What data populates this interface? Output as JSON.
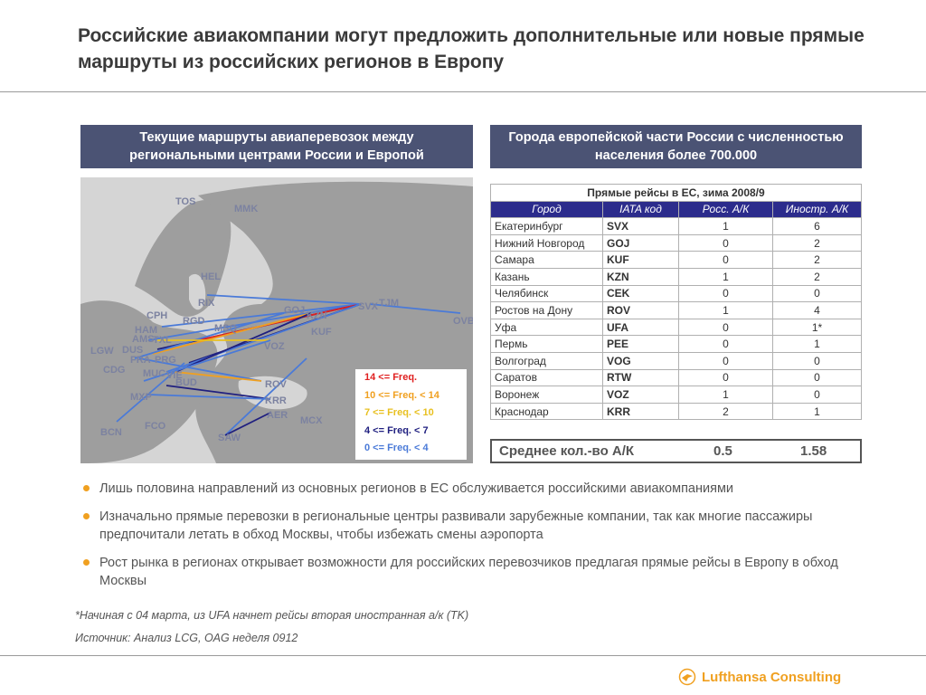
{
  "title": "Российские авиакомпании могут предложить дополнительные или новые прямые маршруты из российских регионов в Европу",
  "left_panel": {
    "header": "Текущие маршруты авиаперевозок между региональными центрами России и Европой",
    "airports": [
      "TOS",
      "MMK",
      "HEL",
      "RIX",
      "CPH",
      "RGD",
      "MSQ",
      "HAM",
      "TXL",
      "AMS",
      "DUS",
      "LGW",
      "FRA",
      "CDG",
      "PRG",
      "MUC",
      "VIE",
      "BUD",
      "MXP",
      "FCO",
      "BCN",
      "GOJ",
      "KZN",
      "KUF",
      "SVX",
      "TJM",
      "OVB",
      "VOZ",
      "ROV",
      "KRR",
      "AER",
      "MCX",
      "SAW"
    ],
    "legend": [
      {
        "label": "14 <= Freq.",
        "color": "#e02020"
      },
      {
        "label": "10 <= Freq. < 14",
        "color": "#f0a020"
      },
      {
        "label": "7 <= Freq. < 10",
        "color": "#e8c020"
      },
      {
        "label": "4 <= Freq. < 7",
        "color": "#202080"
      },
      {
        "label": "0 <= Freq. < 4",
        "color": "#4a7ad8"
      }
    ]
  },
  "right_panel": {
    "header": "Города европейской части России с численностью населения более 700.000",
    "table": {
      "caption": "Прямые рейсы в ЕС, зима 2008/9",
      "columns": [
        "Город",
        "IATA код",
        "Росс. А/К",
        "Иностр. А/К"
      ],
      "rows": [
        [
          "Екатеринбург",
          "SVX",
          "1",
          "6"
        ],
        [
          "Нижний Новгород",
          "GOJ",
          "0",
          "2"
        ],
        [
          "Самара",
          "KUF",
          "0",
          "2"
        ],
        [
          "Казань",
          "KZN",
          "1",
          "2"
        ],
        [
          "Челябинск",
          "CEK",
          "0",
          "0"
        ],
        [
          "Ростов на Дону",
          "ROV",
          "1",
          "4"
        ],
        [
          "Уфа",
          "UFA",
          "0",
          "1*"
        ],
        [
          "Пермь",
          "PEE",
          "0",
          "1"
        ],
        [
          "Волгоград",
          "VOG",
          "0",
          "0"
        ],
        [
          "Саратов",
          "RTW",
          "0",
          "0"
        ],
        [
          "Воронеж",
          "VOZ",
          "1",
          "0"
        ],
        [
          "Краснодар",
          "KRR",
          "2",
          "1"
        ]
      ]
    },
    "average": {
      "label": "Среднее кол.-во А/К",
      "russian": "0.5",
      "foreign": "1.58"
    }
  },
  "bullets": [
    "Лишь половина направлений из основных регионов в ЕС обслуживается российскими авиакомпаниями",
    "Изначально прямые перевозки в региональные центры развивали зарубежные компании, так как многие пассажиры предпочитали летать в обход Москвы, чтобы избежать смены аэропорта",
    "Рост рынка в регионах открывает возможности для российских перевозчиков предлагая прямые рейсы в Европу в обход Москвы"
  ],
  "footnote": "*Начиная с 04 марта, из UFA начнет рейсы вторая иностранная а/к (TK)",
  "source": "Источник: Анализ LCG, OAG неделя 0912",
  "logo": {
    "text": "Lufthansa Consulting",
    "icon": "lufthansa-crane-icon",
    "color": "#f0a020"
  }
}
